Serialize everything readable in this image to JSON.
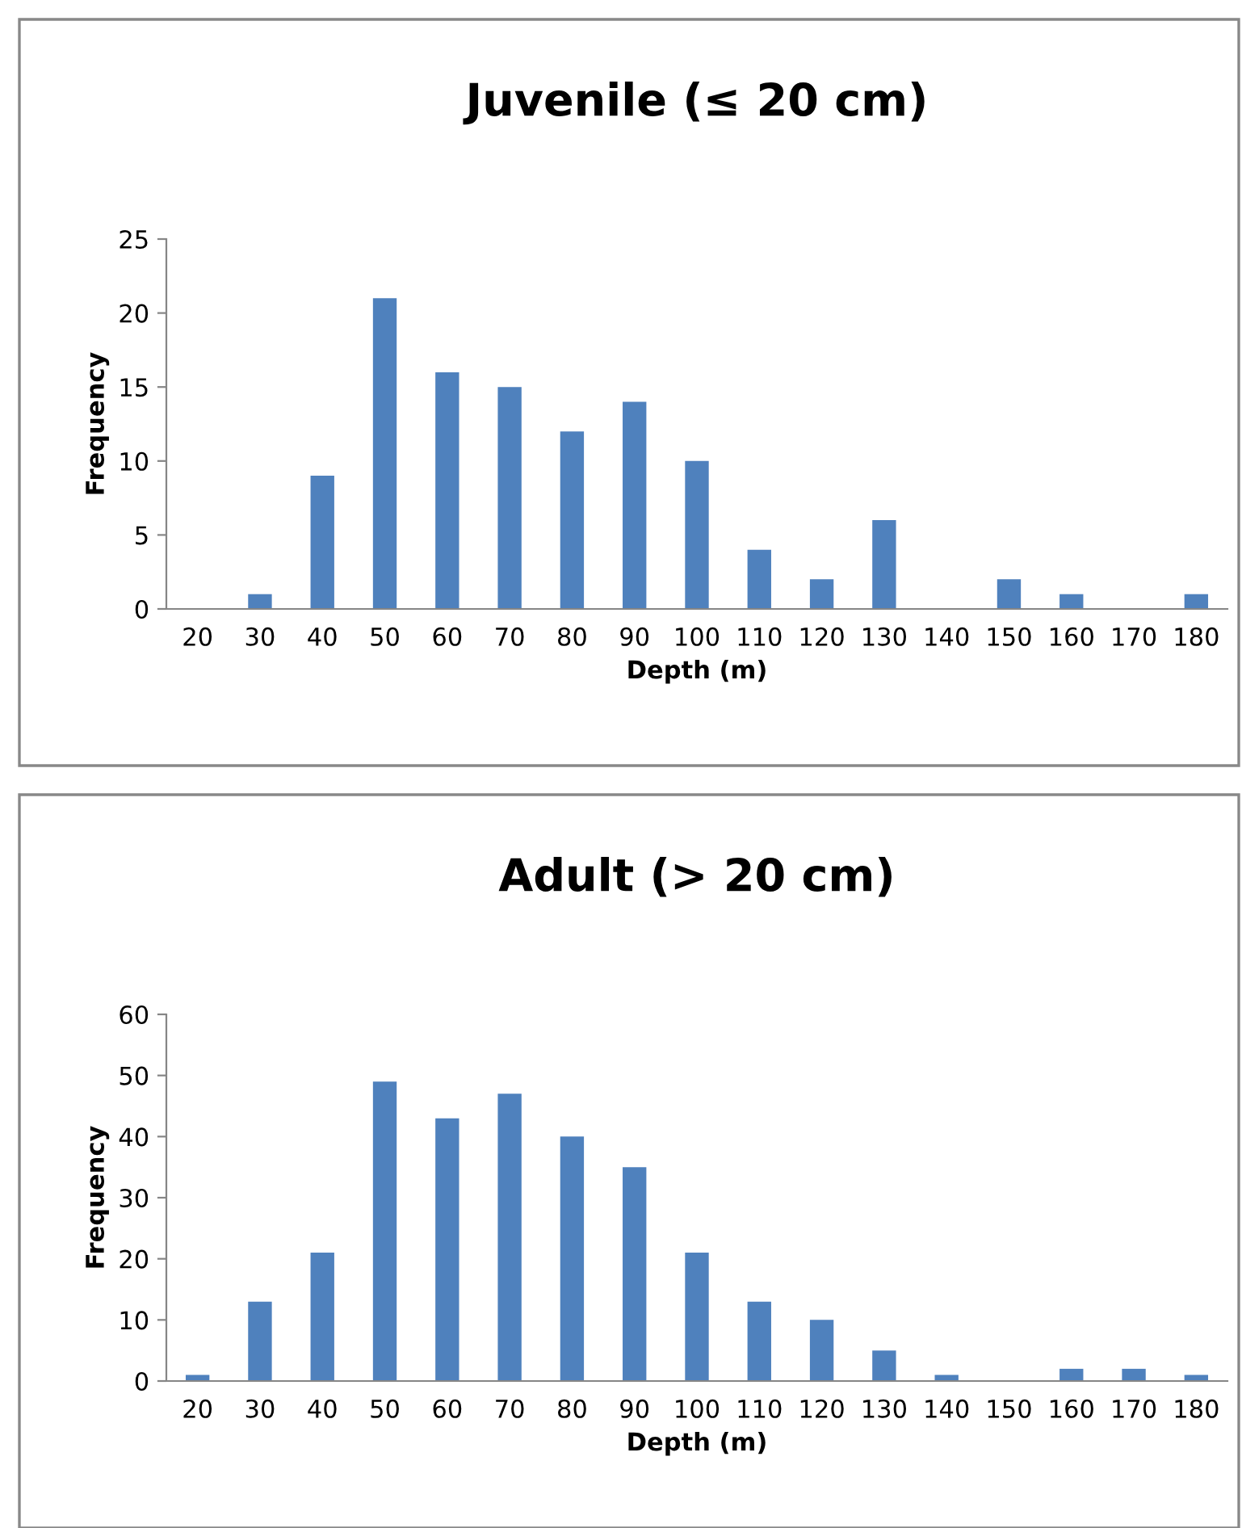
{
  "chart_data": [
    {
      "type": "bar",
      "title": "Juvenile (≤ 20 cm)",
      "xlabel": "Depth (m)",
      "ylabel": "Frequency",
      "categories": [
        "20",
        "30",
        "40",
        "50",
        "60",
        "70",
        "80",
        "90",
        "100",
        "110",
        "120",
        "130",
        "140",
        "150",
        "160",
        "170",
        "180"
      ],
      "values": [
        0,
        1,
        9,
        21,
        16,
        15,
        12,
        14,
        10,
        4,
        2,
        6,
        0,
        2,
        1,
        0,
        1
      ],
      "color": "#4f81bd",
      "ylim": [
        0,
        25
      ],
      "yticks": [
        0,
        5,
        10,
        15,
        20,
        25
      ],
      "grid": false,
      "legend": false
    },
    {
      "type": "bar",
      "title": "Adult (> 20 cm)",
      "xlabel": "Depth (m)",
      "ylabel": "Frequency",
      "categories": [
        "20",
        "30",
        "40",
        "50",
        "60",
        "70",
        "80",
        "90",
        "100",
        "110",
        "120",
        "130",
        "140",
        "150",
        "160",
        "170",
        "180"
      ],
      "values": [
        1,
        13,
        21,
        49,
        43,
        47,
        40,
        35,
        21,
        13,
        10,
        5,
        1,
        0,
        2,
        2,
        1
      ],
      "color": "#4f81bd",
      "ylim": [
        0,
        60
      ],
      "yticks": [
        0,
        10,
        20,
        30,
        40,
        50,
        60
      ],
      "grid": false,
      "legend": false
    }
  ]
}
